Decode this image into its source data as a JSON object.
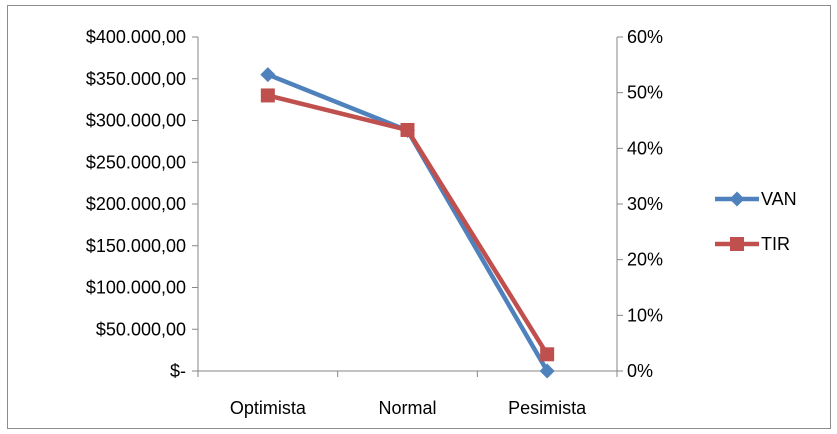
{
  "chart_data": {
    "type": "line",
    "title": "",
    "xlabel": "",
    "ylabel": "",
    "categories": [
      "Optimista",
      "Normal",
      "Pesimista"
    ],
    "y_left": {
      "ylim": [
        0,
        400000
      ],
      "ticks": [
        0,
        50000,
        100000,
        150000,
        200000,
        250000,
        300000,
        350000,
        400000
      ],
      "tick_labels": [
        "$-",
        "$50.000,00",
        "$100.000,00",
        "$150.000,00",
        "$200.000,00",
        "$250.000,00",
        "$300.000,00",
        "$350.000,00",
        "$400.000,00"
      ]
    },
    "y_right": {
      "ylim": [
        0,
        0.6
      ],
      "ticks": [
        0,
        0.1,
        0.2,
        0.3,
        0.4,
        0.5,
        0.6
      ],
      "tick_labels": [
        "0%",
        "10%",
        "20%",
        "30%",
        "40%",
        "50%",
        "60%"
      ]
    },
    "series": [
      {
        "name": "VAN",
        "axis": "left",
        "values": [
          355000,
          288000,
          0
        ],
        "color": "#4F81BD",
        "marker": "diamond"
      },
      {
        "name": "TIR",
        "axis": "right",
        "values": [
          0.495,
          0.433,
          0.03
        ],
        "color": "#C0504D",
        "marker": "square"
      }
    ],
    "grid": false,
    "legend": "right"
  }
}
